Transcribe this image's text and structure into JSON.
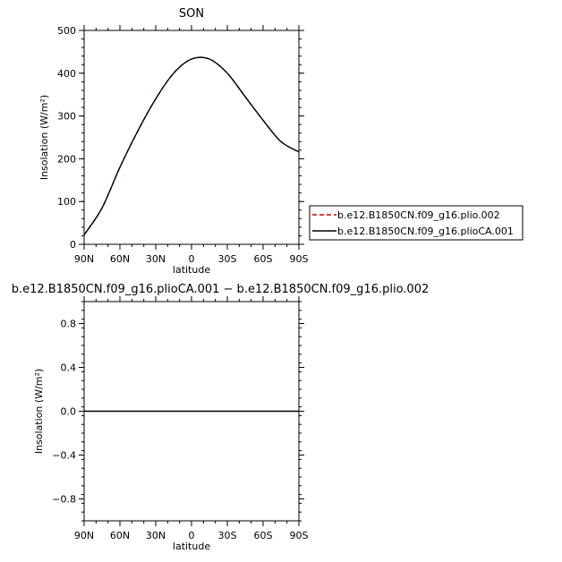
{
  "chart_data": [
    {
      "type": "line",
      "title": "SON",
      "xlabel": "latitude",
      "ylabel": "Insolation (W/m²)",
      "xticks": [
        "90N",
        "60N",
        "30N",
        "0",
        "30S",
        "60S",
        "90S"
      ],
      "x": [
        90,
        75,
        60,
        45,
        30,
        15,
        0,
        -15,
        -30,
        -45,
        -60,
        -75,
        -90
      ],
      "yticks": [
        "0",
        "100",
        "200",
        "300",
        "400",
        "500"
      ],
      "ylim": [
        0,
        500
      ],
      "grid": false,
      "legend_position": "right",
      "series": [
        {
          "name": "b.e12.B1850CN.f09_g16.plio.002",
          "color": "#cc0000",
          "style": "dashed",
          "values": [
            22,
            85,
            180,
            265,
            340,
            400,
            433,
            433,
            400,
            345,
            290,
            240,
            216
          ]
        },
        {
          "name": "b.e12.B1850CN.f09_g16.plioCA.001",
          "color": "#000000",
          "style": "solid",
          "values": [
            22,
            85,
            180,
            265,
            340,
            400,
            433,
            433,
            400,
            345,
            290,
            240,
            216
          ]
        }
      ]
    },
    {
      "type": "line",
      "title": "b.e12.B1850CN.f09_g16.plioCA.001 − b.e12.B1850CN.f09_g16.plio.002",
      "xlabel": "latitude",
      "ylabel": "Insolation (W/m²)",
      "xticks": [
        "90N",
        "60N",
        "30N",
        "0",
        "30S",
        "60S",
        "90S"
      ],
      "x": [
        90,
        -90
      ],
      "yticks": [
        "−0.8",
        "−0.4",
        "0.0",
        "0.4",
        "0.8"
      ],
      "ylim": [
        -1,
        1
      ],
      "grid": false,
      "series": [
        {
          "color": "#000000",
          "style": "solid",
          "values": [
            0,
            0
          ]
        }
      ]
    }
  ]
}
